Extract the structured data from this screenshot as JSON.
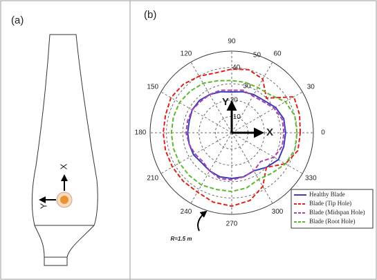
{
  "panel_a": {
    "label": "(a)",
    "x_axis_label": "X",
    "y_axis_label": "Y"
  },
  "chart_data": {
    "type": "polar",
    "panel_label": "(b)",
    "x": [
      0,
      15,
      30,
      45,
      60,
      75,
      90,
      105,
      120,
      135,
      150,
      165,
      180,
      195,
      210,
      225,
      240,
      255,
      270,
      285,
      300,
      315,
      330,
      345
    ],
    "xticks": [
      0,
      30,
      60,
      90,
      120,
      150,
      180,
      210,
      240,
      270,
      300,
      330
    ],
    "rlim": [
      0,
      50
    ],
    "rticks": [
      10,
      20,
      30,
      40,
      50
    ],
    "grid": true,
    "legend": "lower right",
    "annotations": {
      "x_arrow": "X",
      "y_arrow": "Y",
      "radius_note": "R=1.5 m"
    },
    "series": [
      {
        "name": "Healthy Blade",
        "color": "#3a3db8",
        "dash": false,
        "values": [
          33,
          33,
          31,
          28,
          27,
          26,
          25,
          26,
          27,
          28,
          28,
          27,
          27,
          27,
          27,
          26,
          27,
          28,
          28,
          28,
          27,
          30,
          33,
          33
        ]
      },
      {
        "name": "Blade (Tip Hole)",
        "color": "#e0201b",
        "dash": true,
        "values": [
          42,
          43,
          44,
          30,
          38,
          40,
          39,
          38,
          40,
          42,
          43,
          42,
          42,
          42,
          42,
          42,
          42,
          44,
          45,
          43,
          38,
          30,
          38,
          42
        ]
      },
      {
        "name": "Blade (Midspan Hole)",
        "color": "#b040b0",
        "dash": true,
        "values": [
          32,
          32,
          30,
          27,
          26,
          27,
          26,
          27,
          27,
          27,
          28,
          28,
          28,
          27,
          26,
          25,
          27,
          29,
          29,
          28,
          27,
          25,
          30,
          32
        ]
      },
      {
        "name": "Blade (Root Hole)",
        "color": "#5cb82c",
        "dash": true,
        "values": [
          40,
          40,
          38,
          33,
          32,
          32,
          32,
          33,
          35,
          36,
          37,
          37,
          37,
          37,
          37,
          37,
          37,
          36,
          36,
          35,
          33,
          35,
          38,
          40
        ]
      }
    ]
  }
}
